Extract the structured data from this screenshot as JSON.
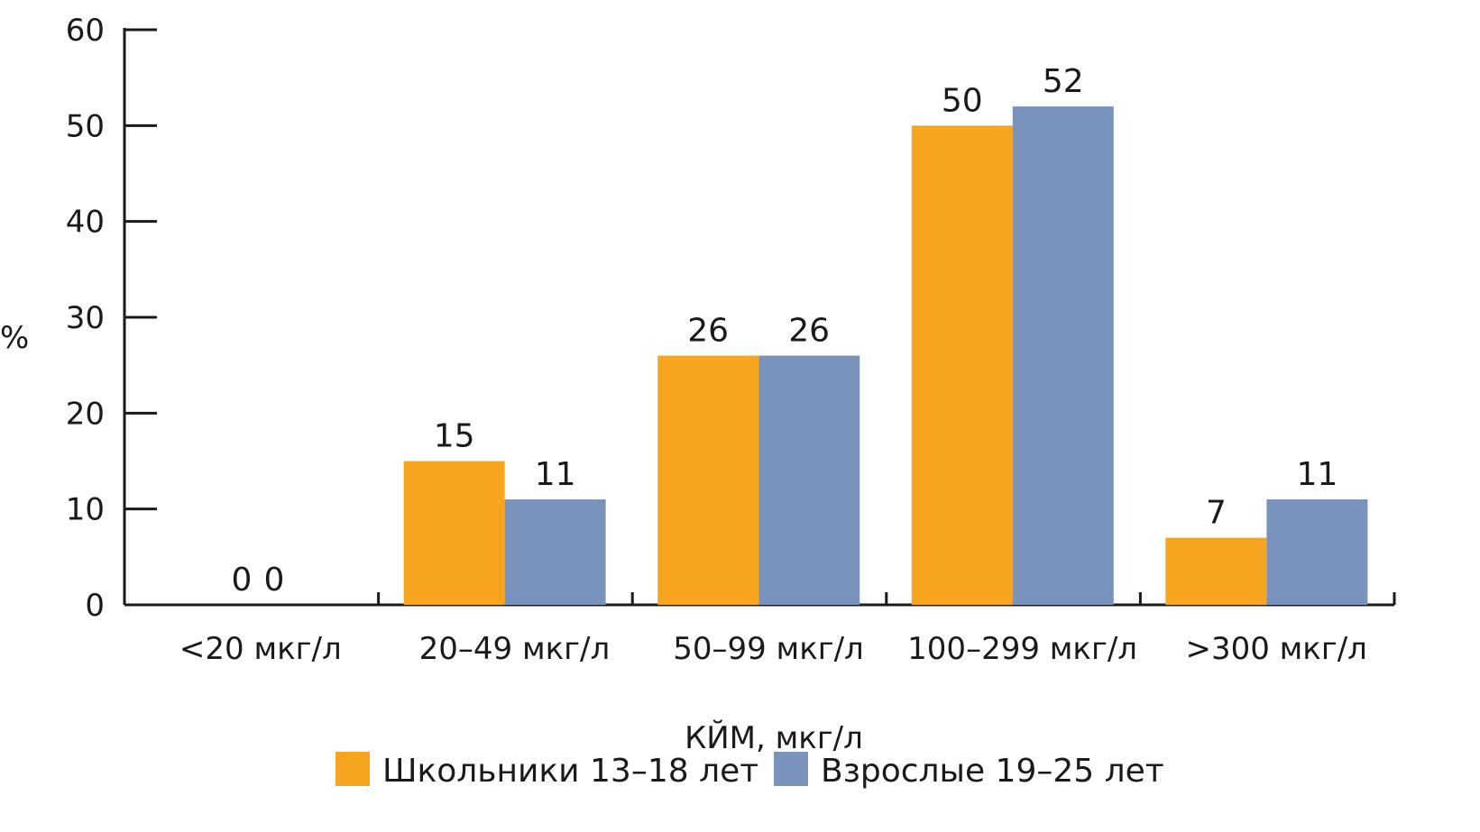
{
  "chart_data": {
    "type": "bar",
    "categories": [
      "<20 мкг/л",
      "20–49 мкг/л",
      "50–99 мкг/л",
      "100–299 мкг/л",
      ">300 мкг/л"
    ],
    "series": [
      {
        "name": "Школьники 13–18 лет",
        "values": [
          0,
          15,
          26,
          50,
          7
        ],
        "color": "#F7A51E"
      },
      {
        "name": "Взрослые 19–25 лет",
        "values": [
          0,
          11,
          26,
          52,
          11
        ],
        "color": "#7A93BD"
      }
    ],
    "title": "",
    "xlabel": "КЙМ, мкг/л",
    "ylabel": "%",
    "ylim": [
      0,
      60
    ],
    "yticks": [
      0,
      10,
      20,
      30,
      40,
      50,
      60
    ],
    "grid": false,
    "legend": "bottom"
  }
}
